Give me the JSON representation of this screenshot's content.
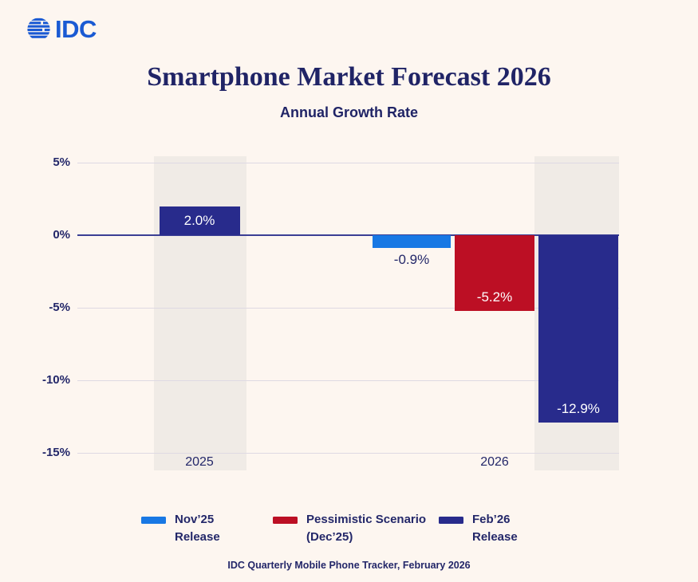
{
  "logo": {
    "brand": "IDC"
  },
  "header": {
    "title": "Smartphone Market Forecast 2026",
    "subtitle": "Annual Growth Rate"
  },
  "colors": {
    "background": "#fdf6f0",
    "band": "#f0ebe6",
    "navy": "#282b8c",
    "blue": "#1878e4",
    "red": "#bc0f24",
    "text_navy": "#232769",
    "gridline": "#ded9e3",
    "zero_line": "#3b3e94",
    "logo_blue": "#1a5ad3"
  },
  "chart_data": {
    "type": "bar",
    "title": "Smartphone Market Forecast 2026",
    "subtitle": "Annual Growth Rate",
    "unit": "percent annual growth",
    "ylim": [
      -15,
      5
    ],
    "grid": true,
    "legend_position": "bottom",
    "yticks": [
      {
        "label": "5%",
        "value": 5
      },
      {
        "label": "0%",
        "value": 0
      },
      {
        "label": "-5%",
        "value": -5
      },
      {
        "label": "-10%",
        "value": -10
      },
      {
        "label": "-15%",
        "value": -15
      }
    ],
    "categories": [
      "2025",
      "2026"
    ],
    "series": [
      {
        "name": "Nov’25 Release",
        "color_key": "blue",
        "values": [
          null,
          -0.9
        ]
      },
      {
        "name": "Pessimistic Scenario (Dec’25)",
        "color_key": "red",
        "values": [
          null,
          -5.2
        ]
      },
      {
        "name": "Feb’26 Release",
        "color_key": "navy",
        "values": [
          2.0,
          -12.9
        ]
      }
    ],
    "bars": [
      {
        "slug": "feb26-release-2025",
        "category": "2025",
        "series": "Feb’26 Release",
        "value": 2.0,
        "label": "2.0%",
        "color_key": "navy",
        "label_style": "inside-center"
      },
      {
        "slug": "nov25-release-2026",
        "category": "2026",
        "series": "Nov’25 Release",
        "value": -0.9,
        "label": "-0.9%",
        "color_key": "blue",
        "label_style": "below"
      },
      {
        "slug": "pessimistic-scenario-2026",
        "category": "2026",
        "series": "Pessimistic Scenario (Dec’25)",
        "value": -5.2,
        "label": "-5.2%",
        "color_key": "red",
        "label_style": "inside-bottom"
      },
      {
        "slug": "feb26-release-2026",
        "category": "2026",
        "series": "Feb’26 Release",
        "value": -12.9,
        "label": "-12.9%",
        "color_key": "navy",
        "label_style": "inside-bottom"
      }
    ]
  },
  "legend": {
    "items": [
      {
        "line1": "Nov’25",
        "line2": "Release",
        "color_key": "blue"
      },
      {
        "line1": "Pessimistic Scenario",
        "line2": "(Dec’25)",
        "color_key": "red"
      },
      {
        "line1": "Feb’26",
        "line2": "Release",
        "color_key": "navy"
      }
    ]
  },
  "footer": {
    "source": "IDC Quarterly Mobile Phone Tracker, February 2026"
  }
}
